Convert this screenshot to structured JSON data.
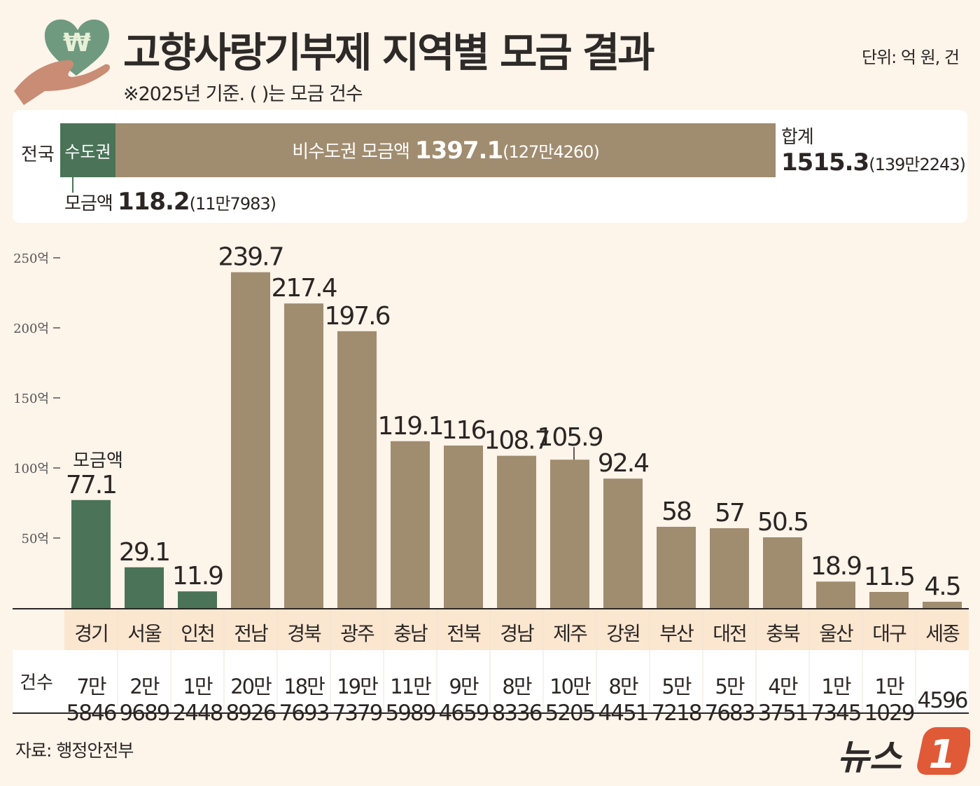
{
  "header": {
    "title": "고향사랑기부제 지역별 모금 결과",
    "subtitle": "※2025년 기준. ( )는 모금 건수",
    "unit": "단위: 억 원, 건"
  },
  "national": {
    "label": "전국",
    "capital": {
      "label": "수도권",
      "caption": "모금액",
      "amount": "118.2",
      "count": "(11만7983)",
      "value": 118.2
    },
    "noncapital": {
      "label": "비수도권 모금액",
      "amount": "1397.1",
      "count": "(127만4260)",
      "value": 1397.1
    },
    "total": {
      "label": "합계",
      "amount": "1515.3",
      "count": "(139만2243)"
    }
  },
  "colors": {
    "capital": "#4a7357",
    "noncapital": "#a08c6f",
    "axis": "#2b2624"
  },
  "chart_data": {
    "type": "bar",
    "categories": [
      "경기",
      "서울",
      "인천",
      "전남",
      "경북",
      "광주",
      "충남",
      "전북",
      "경남",
      "제주",
      "강원",
      "부산",
      "대전",
      "충북",
      "울산",
      "대구",
      "세종"
    ],
    "values": [
      77.1,
      29.1,
      11.9,
      239.7,
      217.4,
      197.6,
      119.1,
      116,
      108.7,
      105.9,
      92.4,
      58,
      57,
      50.5,
      18.9,
      11.5,
      4.5
    ],
    "labels": [
      "77.1",
      "29.1",
      "11.9",
      "239.7",
      "217.4",
      "197.6",
      "119.1",
      "116",
      "108.7",
      "105.9",
      "92.4",
      "58",
      "57",
      "50.5",
      "18.9",
      "11.5",
      "4.5"
    ],
    "capital_region": [
      "경기",
      "서울",
      "인천"
    ],
    "annotation": "모금액",
    "ylim": [
      0,
      250
    ],
    "yticks": [
      {
        "v": 50,
        "t": "50억"
      },
      {
        "v": 100,
        "t": "100억"
      },
      {
        "v": 150,
        "t": "150억"
      },
      {
        "v": 200,
        "t": "200억"
      },
      {
        "v": 250,
        "t": "250억"
      }
    ],
    "grid": false,
    "counts_label": "건수",
    "counts": [
      [
        "7만",
        "5846"
      ],
      [
        "2만",
        "9689"
      ],
      [
        "1만",
        "2448"
      ],
      [
        "20만",
        "8926"
      ],
      [
        "18만",
        "7693"
      ],
      [
        "19만",
        "7379"
      ],
      [
        "11만",
        "5989"
      ],
      [
        "9만",
        "4659"
      ],
      [
        "8만",
        "8336"
      ],
      [
        "10만",
        "5205"
      ],
      [
        "8만",
        "4451"
      ],
      [
        "5만",
        "7218"
      ],
      [
        "5만",
        "7683"
      ],
      [
        "4만",
        "3751"
      ],
      [
        "1만",
        "7345"
      ],
      [
        "1만",
        "1029"
      ],
      [
        "",
        "4596"
      ]
    ]
  },
  "footer": {
    "source": "자료: 행정안전부",
    "logo": "뉴스1"
  }
}
